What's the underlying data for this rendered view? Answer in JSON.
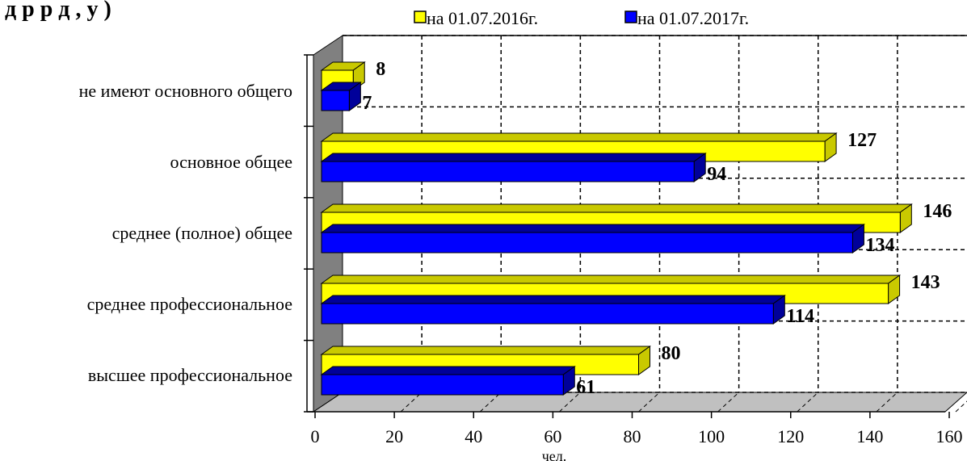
{
  "chart_data": {
    "type": "bar",
    "orientation": "horizontal",
    "three_d": true,
    "title": "д     р      р     д ,              у                        )",
    "xlabel": "чел.",
    "ylabel": "",
    "xlim": [
      0,
      160
    ],
    "xticks": [
      "0",
      "20",
      "40",
      "60",
      "80",
      "100",
      "120",
      "140",
      "160"
    ],
    "grid": true,
    "legend_position": "top",
    "categories": [
      "не имеют основного общего",
      "основное общее",
      "среднее (полное) общее",
      "среднее профессиональное",
      "высшее профессиональное"
    ],
    "series": [
      {
        "name": "на 01.07.2016г.",
        "color": "#ffff00",
        "values": [
          8,
          127,
          146,
          143,
          80
        ]
      },
      {
        "name": "на 01.07.2017г.",
        "color": "#0000ff",
        "values": [
          7,
          94,
          134,
          114,
          61
        ]
      }
    ]
  }
}
